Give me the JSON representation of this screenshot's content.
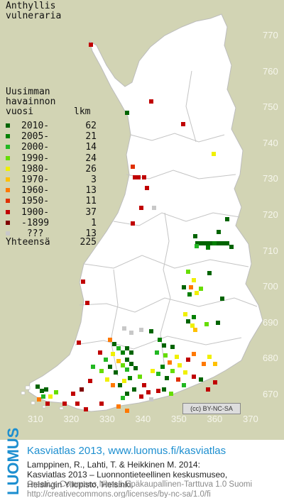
{
  "map": {
    "title_line1": "Anthyllis",
    "title_line2": "vulneraria",
    "land_color": "#ffffff",
    "sea_color": "#d2d4b4",
    "y_ticks": [
      "770",
      "760",
      "750",
      "740",
      "730",
      "720",
      "710",
      "700",
      "690",
      "680",
      "670"
    ],
    "x_ticks": [
      "310",
      "320",
      "330",
      "340",
      "350",
      "360",
      "370"
    ],
    "cc_badge": "BY-NC-SA"
  },
  "legend": {
    "header_line1": "Uusimman",
    "header_line2": "havainnon",
    "header_vuosi": "vuosi",
    "header_lkm": "lkm",
    "rows": [
      {
        "label": "2010-",
        "count": "62",
        "color": "#006400"
      },
      {
        "label": "2005-",
        "count": "21",
        "color": "#008000"
      },
      {
        "label": "2000-",
        "count": "14",
        "color": "#22b822"
      },
      {
        "label": "1990-",
        "count": "24",
        "color": "#66dd00"
      },
      {
        "label": "1980-",
        "count": "26",
        "color": "#f0f000"
      },
      {
        "label": "1970-",
        "count": "3",
        "color": "#ffc000"
      },
      {
        "label": "1960-",
        "count": "13",
        "color": "#ff7800"
      },
      {
        "label": "1950-",
        "count": "11",
        "color": "#e03000"
      },
      {
        "label": "1900-",
        "count": "37",
        "color": "#c00000"
      },
      {
        "label": "-1899",
        "count": "1",
        "color": "#800000"
      },
      {
        "label": " ???",
        "count": "13",
        "color": "#c8c8c8"
      }
    ],
    "total_label": "Yhteensä",
    "total_count": "225"
  },
  "footer": {
    "logo": "LUOMUS",
    "main": "Kasviatlas 2013, www.luomus.fi/kasviatlas",
    "ref1": "Lamppinen, R., Lahti, T. & Heikkinen M. 2014:",
    "ref2": "Kasviatlas 2013 – Luonnontieteellinen keskusmuseo,",
    "ref3": "Helsingin Yliopisto, Helsinki.",
    "lic1": "Creative Commons Nimeä-Epäkaupallinen-Tarttuva 1.0 Suomi",
    "lic2": "http://creativecommons.org/licenses/by-nc-sa/1.0/fi"
  }
}
